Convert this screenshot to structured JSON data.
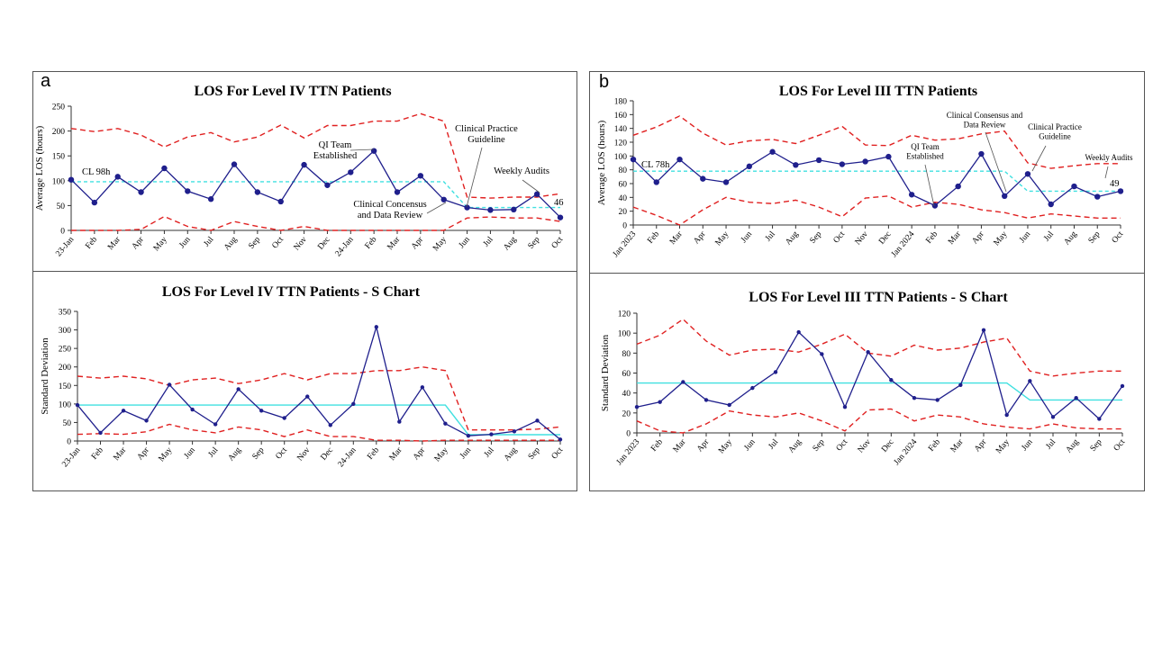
{
  "panels": {
    "a": {
      "letter": "a"
    },
    "b": {
      "letter": "b"
    }
  },
  "colors": {
    "data": "#1f1f8c",
    "limit": "#e02020",
    "center": "#40e0e0",
    "axis": "#333333"
  },
  "chart_data": [
    {
      "id": "a-xbar",
      "type": "line",
      "title": "LOS For Level IV TTN Patients",
      "ylabel": "Average LOS (hours)",
      "xlabel": "",
      "ylim": [
        0,
        250
      ],
      "yticks": [
        0,
        50,
        100,
        150,
        200,
        250
      ],
      "categories": [
        "23-Jan",
        "Feb",
        "Mar",
        "Apr",
        "May",
        "Jun",
        "Jul",
        "Aug",
        "Sep",
        "Oct",
        "Nov",
        "Dec",
        "24-Jan",
        "Feb",
        "Mar",
        "Apr",
        "May",
        "Jun",
        "Jul",
        "Aug",
        "Sep",
        "Oct"
      ],
      "values": [
        102,
        56,
        108,
        77,
        125,
        79,
        63,
        133,
        77,
        58,
        132,
        91,
        117,
        160,
        77,
        110,
        62,
        46,
        41,
        42,
        73,
        26
      ],
      "ucl": [
        205,
        199,
        205,
        192,
        168,
        188,
        197,
        178,
        188,
        212,
        186,
        211,
        211,
        220,
        220,
        235,
        220,
        67,
        65,
        67,
        67,
        74
      ],
      "lcl": [
        0,
        0,
        0,
        2,
        28,
        8,
        0,
        18,
        8,
        0,
        8,
        0,
        0,
        0,
        0,
        0,
        0,
        25,
        27,
        25,
        25,
        18
      ],
      "center": [
        98,
        98,
        98,
        98,
        98,
        98,
        98,
        98,
        98,
        98,
        98,
        98,
        98,
        98,
        98,
        98,
        98,
        46,
        46,
        46,
        46,
        46
      ],
      "annotations": [
        {
          "text": [
            "CL 98h"
          ]
        },
        {
          "text": [
            "QI Team",
            "Established"
          ]
        },
        {
          "text": [
            "Clinical Practice",
            "Guideline"
          ]
        },
        {
          "text": [
            "Weekly Audits"
          ]
        },
        {
          "text": [
            "Clinical Concensus",
            "and Data Review"
          ]
        },
        {
          "text": [
            "46"
          ]
        }
      ]
    },
    {
      "id": "a-s",
      "type": "line",
      "title": "LOS For Level IV TTN Patients - S Chart",
      "ylabel": "Standard Deviation",
      "xlabel": "",
      "ylim": [
        0,
        350
      ],
      "yticks": [
        0,
        50,
        100,
        150,
        200,
        250,
        300,
        350
      ],
      "categories": [
        "23-Jan",
        "Feb",
        "Mar",
        "Apr",
        "May",
        "Jun",
        "Jul",
        "Aug",
        "Sep",
        "Oct",
        "Nov",
        "Dec",
        "24-Jan",
        "Feb",
        "Mar",
        "Apr",
        "May",
        "Jun",
        "Jul",
        "Aug",
        "Sep",
        "Oct"
      ],
      "values": [
        97,
        22,
        82,
        55,
        152,
        85,
        45,
        140,
        82,
        62,
        120,
        43,
        100,
        308,
        52,
        145,
        47,
        14,
        18,
        26,
        55,
        4
      ],
      "ucl": [
        175,
        170,
        175,
        168,
        150,
        165,
        170,
        155,
        165,
        182,
        165,
        182,
        182,
        190,
        190,
        200,
        190,
        30,
        30,
        30,
        32,
        38
      ],
      "lcl": [
        18,
        20,
        18,
        25,
        45,
        30,
        22,
        38,
        30,
        12,
        30,
        12,
        12,
        2,
        2,
        0,
        2,
        2,
        2,
        2,
        2,
        2
      ],
      "center": [
        97,
        97,
        97,
        97,
        97,
        97,
        97,
        97,
        97,
        97,
        97,
        97,
        97,
        97,
        97,
        97,
        97,
        17,
        17,
        17,
        17,
        17
      ],
      "annotations": []
    },
    {
      "id": "b-xbar",
      "type": "line",
      "title": "LOS For Level III TTN Patients",
      "ylabel": "Average LOS (hours)",
      "xlabel": "",
      "ylim": [
        0,
        180
      ],
      "yticks": [
        0,
        20,
        40,
        60,
        80,
        100,
        120,
        140,
        160,
        180
      ],
      "categories": [
        "Jan 2023",
        "Feb",
        "Mar",
        "Apr",
        "May",
        "Jun",
        "Jul",
        "Aug",
        "Sep",
        "Oct",
        "Nov",
        "Dec",
        "Jan 2024",
        "Feb",
        "Mar",
        "Apr",
        "May",
        "Jun",
        "Jul",
        "Aug",
        "Sep",
        "Oct"
      ],
      "values": [
        95,
        62,
        95,
        67,
        62,
        85,
        106,
        87,
        94,
        88,
        92,
        99,
        44,
        28,
        56,
        103,
        42,
        74,
        30,
        56,
        41,
        49
      ],
      "ucl": [
        130,
        142,
        158,
        133,
        116,
        122,
        124,
        118,
        130,
        143,
        116,
        115,
        130,
        123,
        125,
        132,
        136,
        90,
        82,
        86,
        89,
        89
      ],
      "lcl": [
        26,
        14,
        0,
        22,
        40,
        33,
        31,
        36,
        26,
        12,
        39,
        42,
        26,
        33,
        30,
        22,
        18,
        10,
        16,
        13,
        10,
        10
      ],
      "center": [
        78,
        78,
        78,
        78,
        78,
        78,
        78,
        78,
        78,
        78,
        78,
        78,
        78,
        78,
        78,
        78,
        78,
        49,
        49,
        49,
        49,
        49
      ],
      "annotations": [
        {
          "text": [
            "CL 78h"
          ]
        },
        {
          "text": [
            "Clinical Consensus and",
            "Data Review"
          ]
        },
        {
          "text": [
            "Clinical Practice",
            "Guideline"
          ]
        },
        {
          "text": [
            "QI Team",
            "Established"
          ]
        },
        {
          "text": [
            "Weekly Audits"
          ]
        },
        {
          "text": [
            "49"
          ]
        }
      ]
    },
    {
      "id": "b-s",
      "type": "line",
      "title": "LOS For Level III TTN Patients - S Chart",
      "ylabel": "Standard Deviation",
      "xlabel": "",
      "ylim": [
        0,
        120
      ],
      "yticks": [
        0,
        20,
        40,
        60,
        80,
        100,
        120
      ],
      "categories": [
        "Jan 2023",
        "Feb",
        "Mar",
        "Apr",
        "May",
        "Jun",
        "Jul",
        "Aug",
        "Sep",
        "Oct",
        "Nov",
        "Dec",
        "Jan 2024",
        "Feb",
        "Mar",
        "Apr",
        "May",
        "Jun",
        "Jul",
        "Aug",
        "Sep",
        "Oct"
      ],
      "values": [
        26,
        31,
        51,
        33,
        28,
        45,
        61,
        101,
        79,
        26,
        81,
        53,
        35,
        33,
        48,
        103,
        18,
        52,
        16,
        35,
        14,
        47
      ],
      "ucl": [
        89,
        98,
        114,
        92,
        78,
        83,
        84,
        81,
        89,
        99,
        80,
        77,
        88,
        83,
        85,
        91,
        95,
        62,
        57,
        60,
        62,
        62
      ],
      "lcl": [
        12,
        2,
        0,
        9,
        22,
        18,
        16,
        20,
        12,
        2,
        23,
        24,
        12,
        18,
        16,
        9,
        6,
        4,
        9,
        5,
        4,
        4
      ],
      "center": [
        50,
        50,
        50,
        50,
        50,
        50,
        50,
        50,
        50,
        50,
        50,
        50,
        50,
        50,
        50,
        50,
        50,
        33,
        33,
        33,
        33,
        33
      ],
      "annotations": []
    }
  ]
}
